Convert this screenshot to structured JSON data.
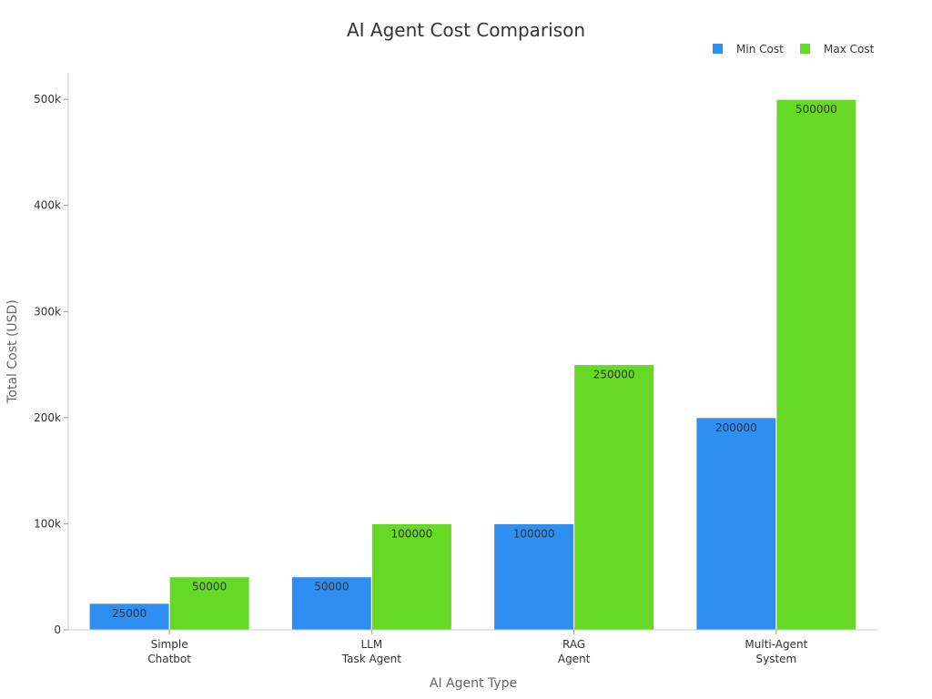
{
  "chart_data": {
    "type": "bar",
    "title": "AI Agent Cost Comparison",
    "xlabel": "AI Agent Type",
    "ylabel": "Total Cost (USD)",
    "categories": [
      [
        "Simple",
        "Chatbot"
      ],
      [
        "LLM",
        "Task Agent"
      ],
      [
        "RAG",
        "Agent"
      ],
      [
        "Multi-Agent",
        "System"
      ]
    ],
    "series": [
      {
        "name": "Min Cost",
        "color": "#2e8ff0",
        "values": [
          25000,
          50000,
          100000,
          200000
        ]
      },
      {
        "name": "Max Cost",
        "color": "#66d926",
        "values": [
          50000,
          100000,
          250000,
          500000
        ]
      }
    ],
    "ylim": [
      0,
      525000
    ],
    "yticks": [
      0,
      100000,
      200000,
      300000,
      400000,
      500000
    ],
    "ytick_labels": [
      "0",
      "100k",
      "200k",
      "300k",
      "400k",
      "500k"
    ],
    "legend_position": "top-right",
    "grid": false
  }
}
